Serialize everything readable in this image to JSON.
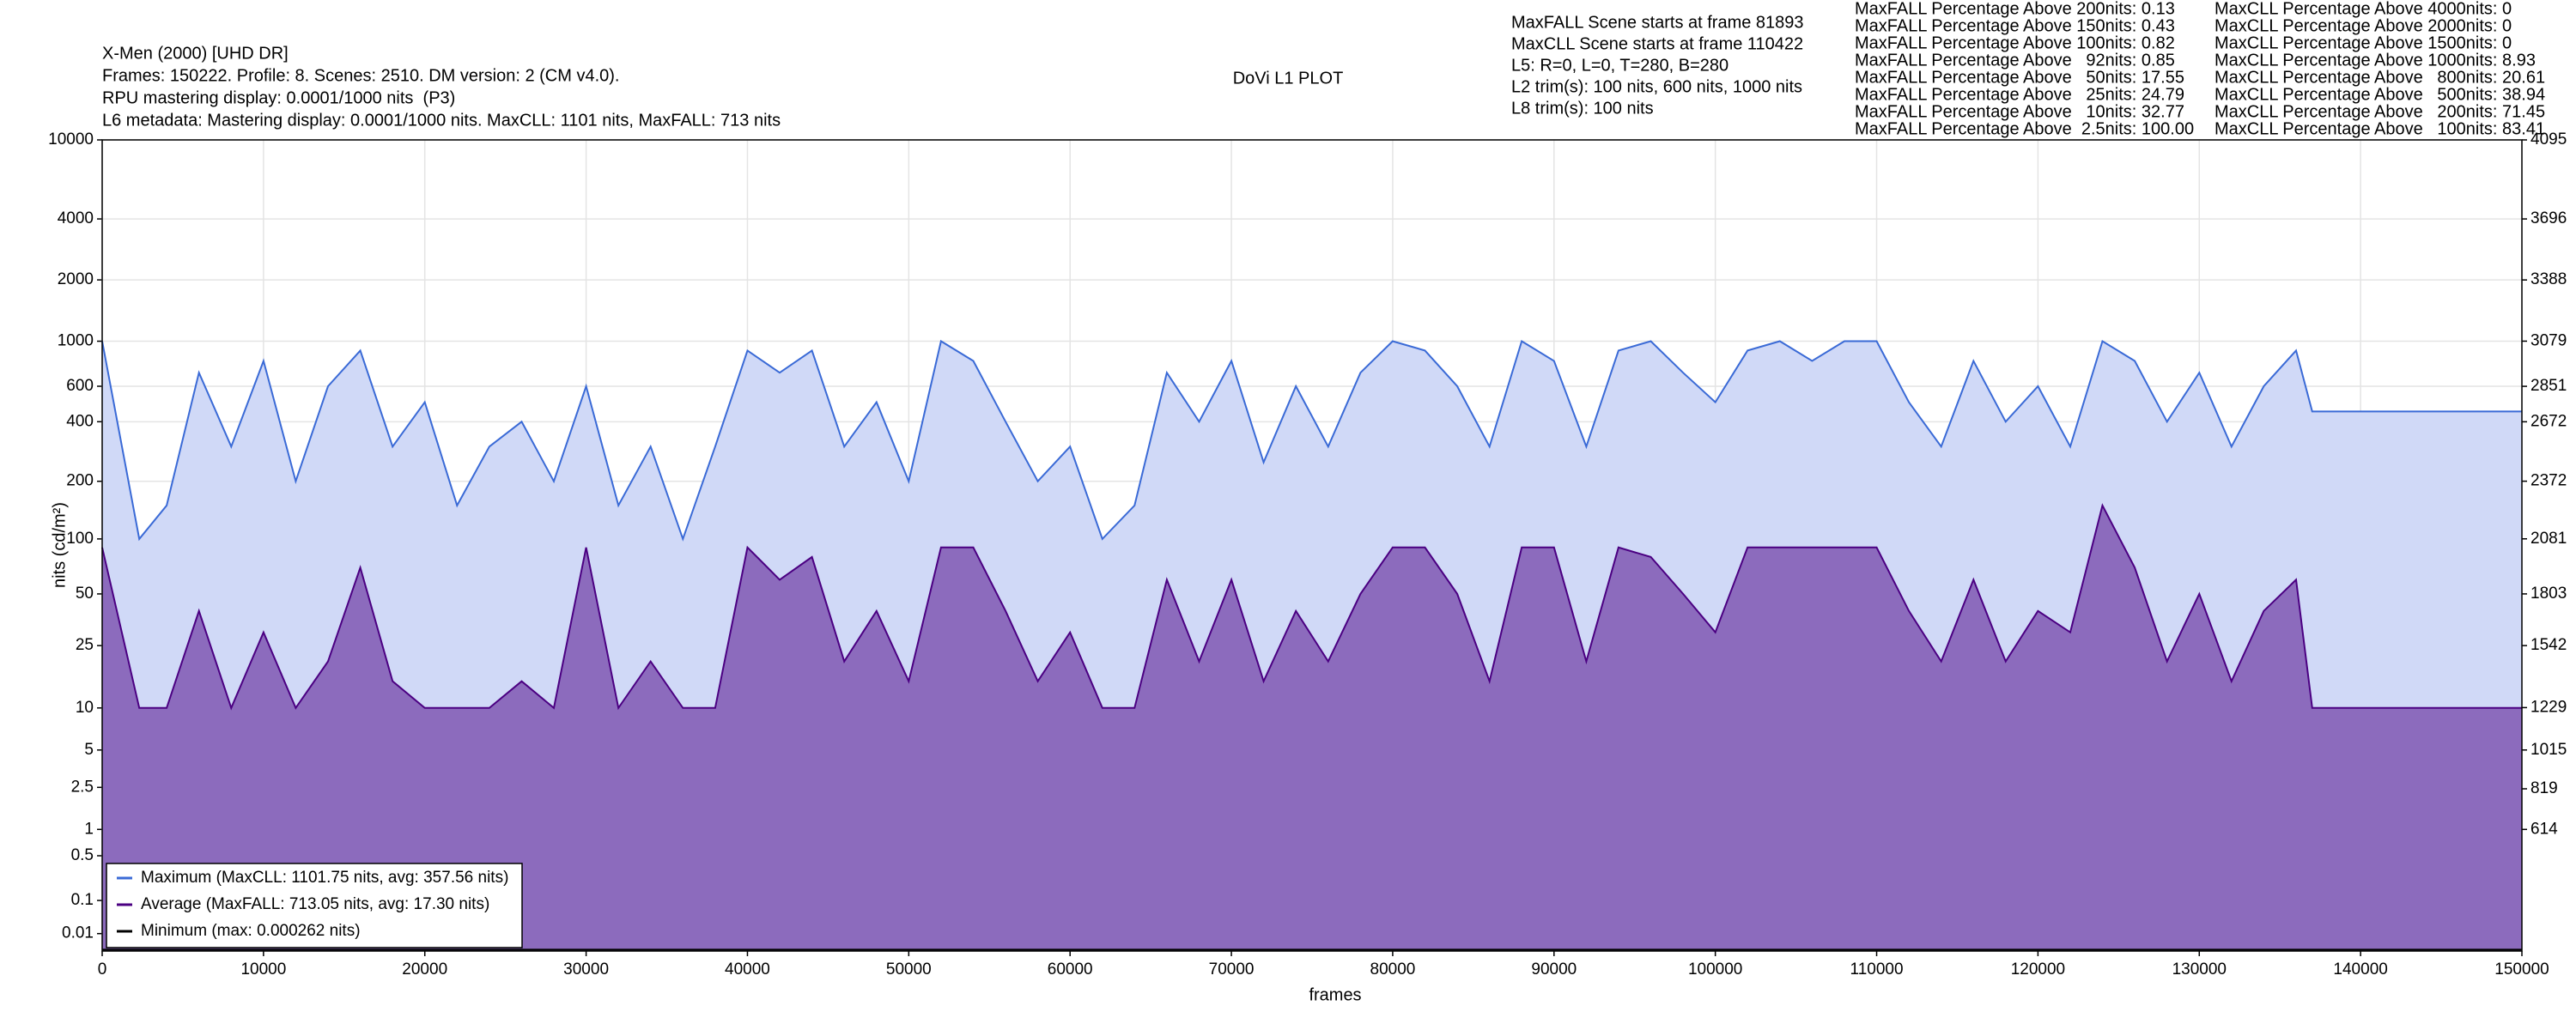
{
  "chart_data": {
    "type": "line",
    "yscale": "pq",
    "title": "DoVi L1 PLOT",
    "info_left": [
      "X-Men (2000) [UHD DR]",
      "Frames: 150222. Profile: 8. Scenes: 2510. DM version: 2 (CM v4.0).",
      "RPU mastering display: 0.0001/1000 nits  (P3)",
      "L6 metadata: Mastering display: 0.0001/1000 nits. MaxCLL: 1101 nits, MaxFALL: 713 nits"
    ],
    "info_mid": [
      "MaxFALL Scene starts at frame 81893",
      "MaxCLL Scene starts at frame 110422",
      "L5: R=0, L=0, T=280, B=280",
      "L2 trim(s): 100 nits, 600 nits, 1000 nits",
      "L8 trim(s): 100 nits"
    ],
    "stats_maxfall": [
      "MaxFALL Percentage Above 200nits: 0.13",
      "MaxFALL Percentage Above 150nits: 0.43",
      "MaxFALL Percentage Above 100nits: 0.82",
      "MaxFALL Percentage Above   92nits: 0.85",
      "MaxFALL Percentage Above   50nits: 17.55",
      "MaxFALL Percentage Above   25nits: 24.79",
      "MaxFALL Percentage Above   10nits: 32.77",
      "MaxFALL Percentage Above  2.5nits: 100.00"
    ],
    "stats_maxcll": [
      "MaxCLL Percentage Above 4000nits: 0",
      "MaxCLL Percentage Above 2000nits: 0",
      "MaxCLL Percentage Above 1500nits: 0",
      "MaxCLL Percentage Above 1000nits: 8.93",
      "MaxCLL Percentage Above   800nits: 20.61",
      "MaxCLL Percentage Above   500nits: 38.94",
      "MaxCLL Percentage Above   200nits: 71.45",
      "MaxCLL Percentage Above   100nits: 83.41"
    ],
    "xlabel": "frames",
    "ylabel": "nits (cd/m²)",
    "xlim": [
      0,
      150000
    ],
    "xticks": [
      0,
      10000,
      20000,
      30000,
      40000,
      50000,
      60000,
      70000,
      80000,
      90000,
      100000,
      110000,
      120000,
      130000,
      140000,
      150000
    ],
    "ylim": [
      0,
      10000
    ],
    "yticks": [
      0.01,
      0.1,
      0.5,
      1,
      2.5,
      5,
      10,
      25,
      50,
      100,
      200,
      400,
      600,
      1000,
      2000,
      4000,
      10000
    ],
    "y2lim": [
      0,
      4095
    ],
    "y2ticks": [
      614,
      819,
      1015,
      1229,
      1542,
      1803,
      2081,
      2372,
      2672,
      2851,
      3079,
      3388,
      3696,
      4095
    ],
    "grid": true,
    "legend": "lower left",
    "x": [
      0,
      2300,
      4000,
      6000,
      8000,
      10000,
      12000,
      14000,
      16000,
      18000,
      20000,
      22000,
      24000,
      26000,
      28000,
      30000,
      32000,
      34000,
      36000,
      38000,
      40000,
      42000,
      44000,
      46000,
      48000,
      50000,
      52000,
      54000,
      56000,
      58000,
      60000,
      62000,
      64000,
      66000,
      68000,
      70000,
      72000,
      74000,
      76000,
      78000,
      80000,
      82000,
      84000,
      86000,
      88000,
      90000,
      92000,
      94000,
      96000,
      98000,
      100000,
      102000,
      104000,
      106000,
      108000,
      110000,
      112000,
      114000,
      116000,
      118000,
      120000,
      122000,
      124000,
      126000,
      128000,
      130000,
      132000,
      134000,
      136000,
      137000,
      150000
    ],
    "series": [
      {
        "name": "Maximum (MaxCLL: 1101.75 nits, avg: 357.56 nits)",
        "color": "#3a6ad6",
        "fill": "#d0d9f7",
        "values": [
          1000,
          100,
          150,
          700,
          300,
          800,
          200,
          600,
          900,
          300,
          500,
          150,
          300,
          400,
          200,
          600,
          150,
          300,
          100,
          300,
          900,
          700,
          900,
          300,
          500,
          200,
          1000,
          800,
          400,
          200,
          300,
          100,
          150,
          700,
          400,
          800,
          250,
          600,
          300,
          700,
          1000,
          900,
          600,
          300,
          1000,
          800,
          300,
          900,
          1000,
          700,
          500,
          900,
          1000,
          800,
          1000,
          1000,
          500,
          300,
          800,
          400,
          600,
          300,
          1000,
          800,
          400,
          700,
          300,
          600,
          900,
          450,
          450
        ]
      },
      {
        "name": "Average (MaxFALL: 713.05 nits, avg: 17.30 nits)",
        "color": "#4b0082",
        "fill": "#8c6bbd",
        "values": [
          90,
          10,
          10,
          40,
          10,
          30,
          10,
          20,
          70,
          15,
          10,
          10,
          10,
          15,
          10,
          90,
          10,
          20,
          10,
          10,
          90,
          60,
          80,
          20,
          40,
          15,
          90,
          90,
          40,
          15,
          30,
          10,
          10,
          60,
          20,
          60,
          15,
          40,
          20,
          50,
          90,
          90,
          50,
          15,
          90,
          90,
          20,
          90,
          80,
          50,
          30,
          90,
          90,
          90,
          90,
          90,
          40,
          20,
          60,
          20,
          40,
          30,
          150,
          70,
          20,
          50,
          15,
          40,
          60,
          10,
          10
        ]
      },
      {
        "name": "Minimum (max: 0.000262 nits)",
        "color": "#000000",
        "x": [
          0,
          150000
        ],
        "values": [
          0.0001,
          0.0001
        ]
      }
    ]
  }
}
